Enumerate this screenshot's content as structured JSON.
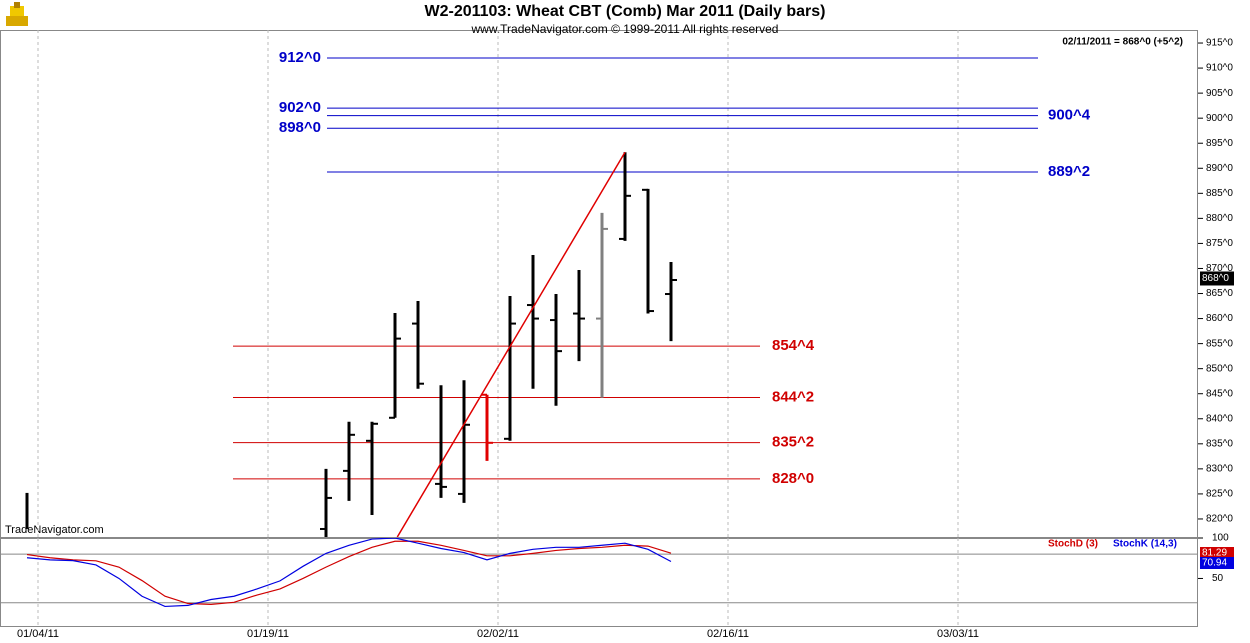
{
  "header": {
    "title": "W2-201103:  Wheat CBT (Comb) Mar 2011  (Daily bars)",
    "subtitle": "www.TradeNavigator.com © 1999-2011 All rights reserved",
    "quote": "02/11/2011 = 868^0 (+5^2)",
    "watermark": "TradeNavigator.com"
  },
  "chart_data": [
    {
      "type": "ohlc",
      "categories": [
        null,
        null,
        null,
        null,
        null,
        null,
        null,
        null,
        null,
        null,
        null,
        null,
        null,
        null,
        null,
        null,
        null,
        null,
        null,
        null,
        null,
        null,
        null,
        null,
        null,
        null,
        null,
        null,
        null
      ],
      "xticks": [
        "01/04/11",
        "01/19/11",
        "02/02/11",
        "02/16/11",
        "03/03/11"
      ],
      "open": [
        null,
        null,
        null,
        null,
        null,
        null,
        null,
        null,
        null,
        null,
        null,
        null,
        null,
        818,
        829.6,
        835.6,
        840.2,
        859,
        827,
        825,
        844.8,
        836,
        862.7,
        859.7,
        861,
        860,
        875.9,
        885.7,
        864.9
      ],
      "high": [
        825.2,
        null,
        null,
        null,
        null,
        null,
        null,
        null,
        null,
        null,
        null,
        null,
        null,
        830,
        839.4,
        839.4,
        861.1,
        863.5,
        846.7,
        847.7,
        844.8,
        864.5,
        872.7,
        864.9,
        869.7,
        881.1,
        893.2,
        885.9,
        871.3
      ],
      "low": [
        818,
        null,
        null,
        null,
        null,
        null,
        null,
        null,
        null,
        null,
        null,
        null,
        null,
        815,
        823.6,
        820.8,
        840.2,
        846,
        824.2,
        823.2,
        831.6,
        835.6,
        846,
        842.6,
        851.5,
        844.2,
        875.5,
        861,
        855.5
      ],
      "close": [
        null,
        null,
        null,
        null,
        null,
        null,
        null,
        null,
        null,
        null,
        null,
        null,
        null,
        824.2,
        836.8,
        839,
        856,
        847,
        826.4,
        838.8,
        835.2,
        859,
        860,
        853.5,
        860,
        877.9,
        884.5,
        861.5,
        867.7
      ],
      "colors": [
        "#000000",
        null,
        null,
        null,
        null,
        null,
        null,
        null,
        null,
        null,
        null,
        null,
        null,
        "#000000",
        "#000000",
        "#000000",
        "#000000",
        "#000000",
        "#000000",
        "#000000",
        "#e00000",
        "#000000",
        "#000000",
        "#000000",
        "#000000",
        "#808080",
        "#000000",
        "#000000",
        "#000000"
      ],
      "ylim": [
        816.4,
        917.6
      ],
      "yticks": [
        {
          "value": 915,
          "label": "915^0"
        },
        {
          "value": 910,
          "label": "910^0"
        },
        {
          "value": 905,
          "label": "905^0"
        },
        {
          "value": 900,
          "label": "900^0"
        },
        {
          "value": 895,
          "label": "895^0"
        },
        {
          "value": 890,
          "label": "890^0"
        },
        {
          "value": 885,
          "label": "885^0"
        },
        {
          "value": 880,
          "label": "880^0"
        },
        {
          "value": 875,
          "label": "875^0"
        },
        {
          "value": 870,
          "label": "870^0"
        },
        {
          "value": 865,
          "label": "865^0"
        },
        {
          "value": 860,
          "label": "860^0"
        },
        {
          "value": 855,
          "label": "855^0"
        },
        {
          "value": 850,
          "label": "850^0"
        },
        {
          "value": 845,
          "label": "845^0"
        },
        {
          "value": 840,
          "label": "840^0"
        },
        {
          "value": 835,
          "label": "835^0"
        },
        {
          "value": 830,
          "label": "830^0"
        },
        {
          "value": 825,
          "label": "825^0"
        },
        {
          "value": 820,
          "label": "820^0"
        }
      ],
      "last_price": {
        "value": 868,
        "label": "868^0"
      },
      "levels": [
        {
          "value": 912,
          "label": "912^0",
          "color": "#0000c8",
          "label_side": "left"
        },
        {
          "value": 902,
          "label": "902^0",
          "color": "#0000c8",
          "label_side": "left"
        },
        {
          "value": 900.5,
          "label": "900^4",
          "color": "#0000c8",
          "label_side": "right"
        },
        {
          "value": 898,
          "label": "898^0",
          "color": "#0000c8",
          "label_side": "left"
        },
        {
          "value": 889.25,
          "label": "889^2",
          "color": "#0000c8",
          "label_side": "right"
        },
        {
          "value": 854.5,
          "label": "854^4",
          "color": "#d00000",
          "label_side": "right"
        },
        {
          "value": 844.25,
          "label": "844^2",
          "color": "#d00000",
          "label_side": "right"
        },
        {
          "value": 835.25,
          "label": "835^2",
          "color": "#d00000",
          "label_side": "right"
        },
        {
          "value": 828,
          "label": "828^0",
          "color": "#d00000",
          "label_side": "right"
        }
      ],
      "trendline": {
        "color": "#e00000",
        "x": [
          16.1,
          26
        ],
        "y": [
          816.4,
          893.2
        ]
      }
    },
    {
      "type": "line",
      "ylim": [
        -10,
        100
      ],
      "yticks": [
        100,
        50
      ],
      "levels": [
        80,
        20
      ],
      "series": [
        {
          "name": "StochD (3)",
          "color": "#d00000",
          "values": [
            79.5,
            75.6,
            73,
            71.8,
            64,
            47.4,
            28,
            19,
            18,
            20.5,
            29.5,
            37,
            50,
            64,
            77,
            88.5,
            96,
            96,
            91,
            84.6,
            78,
            78,
            81,
            84.6,
            87,
            88.5,
            91,
            90,
            81.29
          ]
        },
        {
          "name": "StochK (14,3)",
          "color": "#0000e0",
          "values": [
            75.6,
            73,
            72,
            66.7,
            50,
            28,
            15.4,
            16.7,
            24,
            28,
            37,
            47,
            65,
            81,
            91,
            98.7,
            100,
            93.6,
            87,
            82,
            73,
            81,
            86,
            88.5,
            88.5,
            91,
            93.6,
            86,
            70.94
          ]
        }
      ]
    }
  ]
}
